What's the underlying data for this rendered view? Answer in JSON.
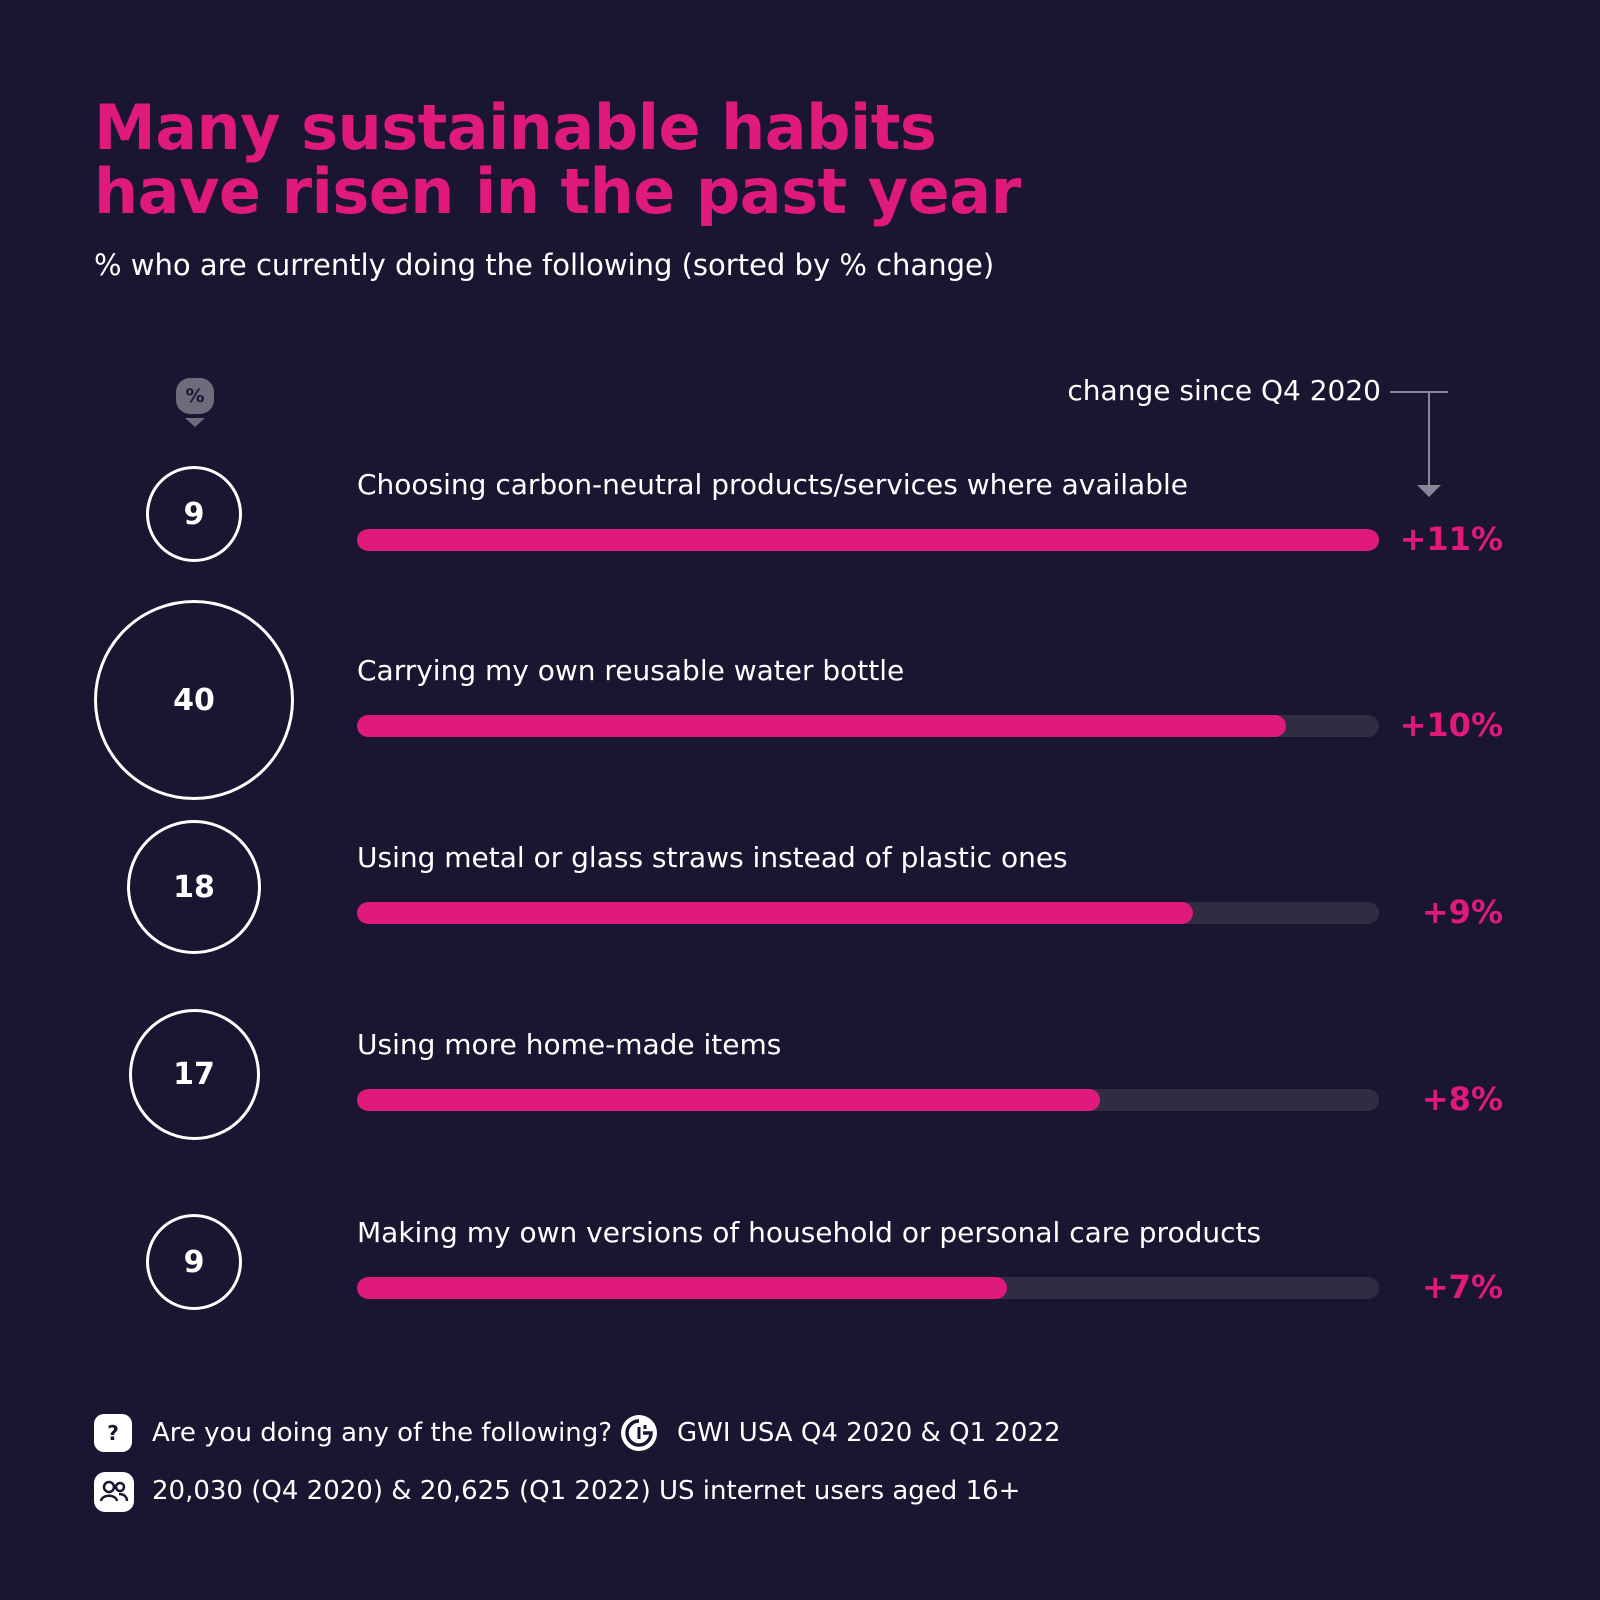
{
  "chart_data": {
    "type": "bar",
    "title_lines": [
      "Many sustainable habits",
      "have risen in the past year"
    ],
    "subtitle": "% who are currently doing the following (sorted by % change)",
    "value_badge": "%",
    "change_header": "change since Q4 2020",
    "xlim": [
      0,
      11
    ],
    "categories": [
      "Choosing carbon-neutral products/services where available",
      "Carrying my own reusable water bottle",
      "Using metal or glass straws instead of plastic ones",
      "Using more home-made items",
      "Making my own versions of household or personal care products"
    ],
    "current_pct": [
      "9",
      "40",
      "18",
      "17",
      "9"
    ],
    "change_pct": [
      11,
      10,
      9,
      8,
      7
    ],
    "change_labels": [
      "+11%",
      "+10%",
      "+9%",
      "+8%",
      "+7%"
    ]
  },
  "colors": {
    "background": "#1a1530",
    "accent": "#e0197d",
    "track": "#302c42",
    "text": "#ffffff"
  },
  "footer": {
    "question_icon": "?",
    "question": "Are you doing any of the following?",
    "source_icon": "gwi-logo-icon",
    "source": "GWI USA Q4 2020 & Q1 2022",
    "sample_icon": "users-icon",
    "sample": "20,030 (Q4 2020) & 20,625 (Q1 2022) US internet users aged 16+"
  }
}
